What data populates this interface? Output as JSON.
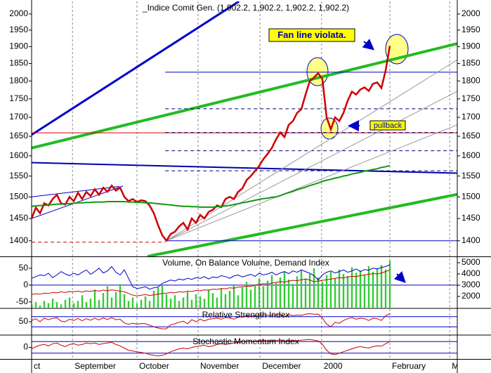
{
  "chart_data": {
    "type": "line",
    "title": "_Indice Comit Gen. (1,902.2, 1,902.2, 1,902.2, 1,902.2)",
    "x": [
      0,
      1,
      2,
      3,
      4,
      5,
      6,
      7,
      8,
      9,
      10,
      11,
      12,
      13,
      14,
      15,
      16,
      17,
      18,
      19,
      20,
      21,
      22,
      23,
      24,
      25,
      26,
      27,
      28,
      29,
      30,
      31,
      32,
      33,
      34,
      35,
      36,
      37,
      38,
      39,
      40,
      41,
      42,
      43,
      44,
      45,
      46,
      47,
      48,
      49,
      50,
      51,
      52,
      53,
      54,
      55,
      56,
      57,
      58,
      59,
      60,
      61,
      62,
      63,
      64,
      65,
      66,
      67,
      68,
      69,
      70,
      71,
      72,
      73,
      74,
      75,
      76,
      77,
      78,
      79,
      80,
      81,
      82,
      83,
      84,
      85
    ],
    "xlim": [
      0,
      101
    ],
    "xticks": [
      {
        "value": 0,
        "label": "ct"
      },
      {
        "value": 9.7,
        "label": "September"
      },
      {
        "value": 25,
        "label": "October"
      },
      {
        "value": 39.5,
        "label": "November"
      },
      {
        "value": 54.2,
        "label": "December"
      },
      {
        "value": 68.8,
        "label": "2000"
      },
      {
        "value": 85,
        "label": "February"
      },
      {
        "value": 99.2,
        "label": "Ma"
      }
    ],
    "grid": true,
    "panels": [
      {
        "log_scale": true,
        "ylim": [
          1366,
          2040
        ],
        "tick_labels_both_sides": true,
        "yticks": [
          1400,
          1450,
          1500,
          1550,
          1600,
          1650,
          1700,
          1750,
          1800,
          1850,
          1900,
          1950,
          2000
        ],
        "series": [
          {
            "color": "#cc0000",
            "width": 2.5,
            "values": [
              1450,
              1475,
              1462,
              1485,
              1480,
              1495,
              1505,
              1485,
              1482,
              1500,
              1490,
              1510,
              1495,
              1512,
              1502,
              1518,
              1505,
              1522,
              1512,
              1527,
              1515,
              1522,
              1500,
              1490,
              1495,
              1488,
              1492,
              1490,
              1480,
              1462,
              1435,
              1412,
              1400,
              1415,
              1420,
              1432,
              1440,
              1425,
              1450,
              1440,
              1458,
              1450,
              1465,
              1470,
              1480,
              1476,
              1495,
              1500,
              1495,
              1512,
              1520,
              1540,
              1550,
              1562,
              1575,
              1592,
              1605,
              1620,
              1642,
              1660,
              1648,
              1680,
              1690,
              1712,
              1722,
              1762,
              1800,
              1810,
              1822,
              1805,
              1700,
              1668,
              1700,
              1690,
              1712,
              1745,
              1770,
              1762,
              1776,
              1782,
              1772,
              1792,
              1796,
              1780,
              1830,
              1902.2
            ]
          },
          {
            "color": "#119911",
            "width": 2,
            "values": [
              1478,
              1479,
              1480,
              1480,
              1481,
              1482,
              1483,
              1483,
              1484,
              1484,
              1485,
              1486,
              1486,
              1487,
              1487,
              1488,
              1488,
              1488,
              1489,
              1489,
              1489,
              1489,
              1489,
              1488,
              1488,
              1487,
              1487,
              1486,
              1486,
              1485,
              1484,
              1483,
              1482,
              1481,
              1480,
              1479,
              1478,
              1478,
              1477,
              1477,
              1476,
              1476,
              1476,
              1476,
              1477,
              1478,
              1479,
              1480,
              1482,
              1484,
              1486,
              1488,
              1490,
              1492,
              1494,
              1496,
              1497,
              1499,
              1500,
              1503,
              1507,
              1510,
              1513,
              1517,
              1520,
              1523,
              1527,
              1530,
              1533,
              1537,
              1540,
              1542,
              1545,
              1547,
              1550,
              1552,
              1555,
              1557,
              1559,
              1562,
              1564,
              1566,
              1568,
              1571,
              1573,
              1576
            ]
          }
        ],
        "trendlines": [
          {
            "from": [
              0,
              1654
            ],
            "to": [
              49.2,
              2040
            ],
            "color": "#0000cc",
            "width": 3
          },
          {
            "from": [
              0,
              1620
            ],
            "to": [
              101,
              1909
            ],
            "color": "#22bb22",
            "width": 4
          },
          {
            "from": [
              27.5,
              1366
            ],
            "to": [
              101,
              1506
            ],
            "color": "#22bb22",
            "width": 4
          },
          {
            "from": [
              0,
              1583
            ],
            "to": [
              101,
              1557
            ],
            "color": "#0000aa",
            "width": 2
          },
          {
            "from": [
              0,
              1659
            ],
            "to": [
              101,
              1659
            ],
            "color": "#dd0000",
            "width": 1
          },
          {
            "from": [
              31.7,
              1825
            ],
            "to": [
              101,
              1825
            ],
            "color": "#0000cc",
            "width": 1
          },
          {
            "from": [
              31.7,
              1400
            ],
            "to": [
              101,
              1400
            ],
            "color": "#0000cc",
            "width": 1
          },
          {
            "from": [
              0,
              1397
            ],
            "to": [
              31.7,
              1397
            ],
            "color": "#cc0000",
            "width": 1,
            "dashed": true
          },
          {
            "from": [
              31.7,
              1723
            ],
            "to": [
              101,
              1723
            ],
            "color": "#000080",
            "width": 1,
            "dashed": true
          },
          {
            "from": [
              31.7,
              1660
            ],
            "to": [
              101,
              1660
            ],
            "color": "#000080",
            "width": 1,
            "dashed": true
          },
          {
            "from": [
              31.7,
              1613
            ],
            "to": [
              101,
              1613
            ],
            "color": "#000080",
            "width": 1,
            "dashed": true
          },
          {
            "from": [
              31.7,
              1563
            ],
            "to": [
              101,
              1563
            ],
            "color": "#000080",
            "width": 1,
            "dashed": true
          },
          {
            "from": [
              0,
              1450
            ],
            "to": [
              21.7,
              1526
            ],
            "color": "#0000cc",
            "width": 1
          },
          {
            "from": [
              0,
              1500
            ],
            "to": [
              20.8,
              1525
            ],
            "color": "#0000cc",
            "width": 1
          },
          {
            "from": [
              32,
              1400
            ],
            "to": [
              101,
              1861
            ],
            "color": "#999999",
            "width": 1
          },
          {
            "from": [
              32,
              1400
            ],
            "to": [
              101,
              1771
            ],
            "color": "#999999",
            "width": 1
          },
          {
            "from": [
              32,
              1400
            ],
            "to": [
              101,
              1680
            ],
            "color": "#999999",
            "width": 1
          }
        ],
        "annotations": [
          {
            "text": "Fan line violata."
          },
          {
            "text": "pullback"
          }
        ]
      },
      {
        "title": "Volume, On Balance Volume, Demand Index",
        "ylim": [
          -67,
          83
        ],
        "yticks": [
          -50,
          0,
          50
        ],
        "y2lim": [
          1000,
          5500
        ],
        "y2ticks": [
          2000,
          3000,
          4000,
          5000
        ],
        "levels": [
          0
        ],
        "series": [
          {
            "style": "bar",
            "axis": "y2",
            "color": "#33cc33",
            "values": [
              1300,
              1500,
              1200,
              1600,
              1400,
              1800,
              1500,
              1300,
              1700,
              1900,
              1400,
              1600,
              2100,
              1500,
              1800,
              2600,
              1700,
              2300,
              2900,
              1900,
              2400,
              3100,
              2200,
              1600,
              1900,
              1400,
              1700,
              2000,
              1600,
              2500,
              2800,
              3000,
              2200,
              1800,
              2100,
              1600,
              1900,
              2400,
              1700,
              2200,
              2000,
              1800,
              2600,
              2300,
              1900,
              2700,
              2200,
              2500,
              3000,
              2100,
              2800,
              3300,
              2600,
              3000,
              3600,
              2900,
              3400,
              3900,
              3200,
              3700,
              4200,
              3500,
              3100,
              3800,
              4300,
              3600,
              4000,
              4500,
              3700,
              3300,
              3900,
              4200,
              3600,
              4400,
              4000,
              3800,
              4600,
              4100,
              4300,
              3900,
              4700,
              4200,
              4500,
              4800,
              4400,
              5200
            ]
          },
          {
            "color": "#0000cc",
            "width": 1,
            "values": [
              20,
              25,
              30,
              28,
              35,
              22,
              30,
              40,
              33,
              28,
              35,
              30,
              38,
              45,
              32,
              40,
              50,
              36,
              42,
              55,
              38,
              30,
              45,
              20,
              -5,
              -10,
              -8,
              -5,
              -12,
              -8,
              -6,
              5,
              10,
              15,
              12,
              18,
              15,
              20,
              17,
              22,
              20,
              25,
              18,
              24,
              22,
              28,
              25,
              20,
              27,
              30,
              24,
              28,
              32,
              26,
              35,
              30,
              33,
              38,
              30,
              36,
              40,
              34,
              42,
              38,
              45,
              40,
              35,
              28,
              15,
              30,
              38,
              42,
              36,
              40,
              45,
              38,
              42,
              48,
              40,
              46,
              44,
              50,
              48,
              52,
              55,
              60
            ]
          },
          {
            "color": "#cc0000",
            "width": 1,
            "values": [
              -28,
              -26,
              -27,
              -24,
              -25,
              -22,
              -23,
              -20,
              -22,
              -19,
              -20,
              -18,
              -21,
              -17,
              -19,
              -16,
              -18,
              -15,
              -17,
              -14,
              -16,
              -18,
              -20,
              -25,
              -30,
              -32,
              -30,
              -28,
              -31,
              -29,
              -27,
              -25,
              -24,
              -22,
              -23,
              -20,
              -21,
              -18,
              -19,
              -16,
              -17,
              -14,
              -15,
              -12,
              -13,
              -10,
              -11,
              -8,
              -9,
              -6,
              -5,
              -3,
              -4,
              0,
              2,
              4,
              3,
              6,
              8,
              10,
              9,
              12,
              14,
              13,
              16,
              18,
              15,
              10,
              12,
              14,
              16,
              18,
              20,
              22,
              21,
              24,
              26,
              25,
              28,
              30,
              32,
              34,
              33,
              36,
              40,
              45
            ]
          }
        ]
      },
      {
        "title": "Relative Strength Index",
        "ylim": [
          0,
          100
        ],
        "yticks": [
          50
        ],
        "levels": [
          30,
          70
        ],
        "series": [
          {
            "color": "#cc0000",
            "width": 1,
            "values": [
              55,
              62,
              50,
              64,
              58,
              63,
              66,
              52,
              50,
              60,
              55,
              63,
              54,
              62,
              56,
              64,
              57,
              65,
              59,
              66,
              58,
              60,
              45,
              40,
              44,
              40,
              43,
              42,
              36,
              30,
              25,
              22,
              22,
              38,
              42,
              48,
              52,
              42,
              58,
              50,
              60,
              53,
              60,
              62,
              64,
              60,
              66,
              65,
              60,
              68,
              70,
              74,
              72,
              74,
              75,
              76,
              76,
              75,
              77,
              78,
              70,
              78,
              74,
              76,
              75,
              80,
              82,
              80,
              80,
              65,
              40,
              30,
              48,
              44,
              55,
              62,
              66,
              60,
              64,
              62,
              55,
              64,
              62,
              55,
              74,
              82
            ]
          }
        ]
      },
      {
        "title": "Stochastic Momentum Index",
        "ylim": [
          -80,
          80
        ],
        "yticks": [
          0
        ],
        "levels": [
          -40,
          40
        ],
        "series": [
          {
            "color": "#cc0000",
            "width": 1,
            "values": [
              -10,
              5,
              15,
              20,
              10,
              25,
              30,
              15,
              5,
              20,
              25,
              15,
              20,
              30,
              25,
              30,
              20,
              25,
              30,
              35,
              20,
              10,
              -5,
              -20,
              -25,
              -30,
              -35,
              -40,
              -50,
              -55,
              -60,
              -55,
              -45,
              -30,
              -20,
              -10,
              -5,
              -10,
              0,
              5,
              10,
              15,
              5,
              10,
              20,
              25,
              20,
              25,
              30,
              35,
              38,
              40,
              42,
              40,
              45,
              48,
              46,
              44,
              48,
              50,
              42,
              46,
              48,
              44,
              50,
              52,
              55,
              50,
              45,
              20,
              -20,
              -45,
              -50,
              -40,
              -30,
              -20,
              -10,
              0,
              5,
              0,
              -5,
              5,
              10,
              8,
              25,
              40
            ]
          }
        ]
      }
    ]
  }
}
